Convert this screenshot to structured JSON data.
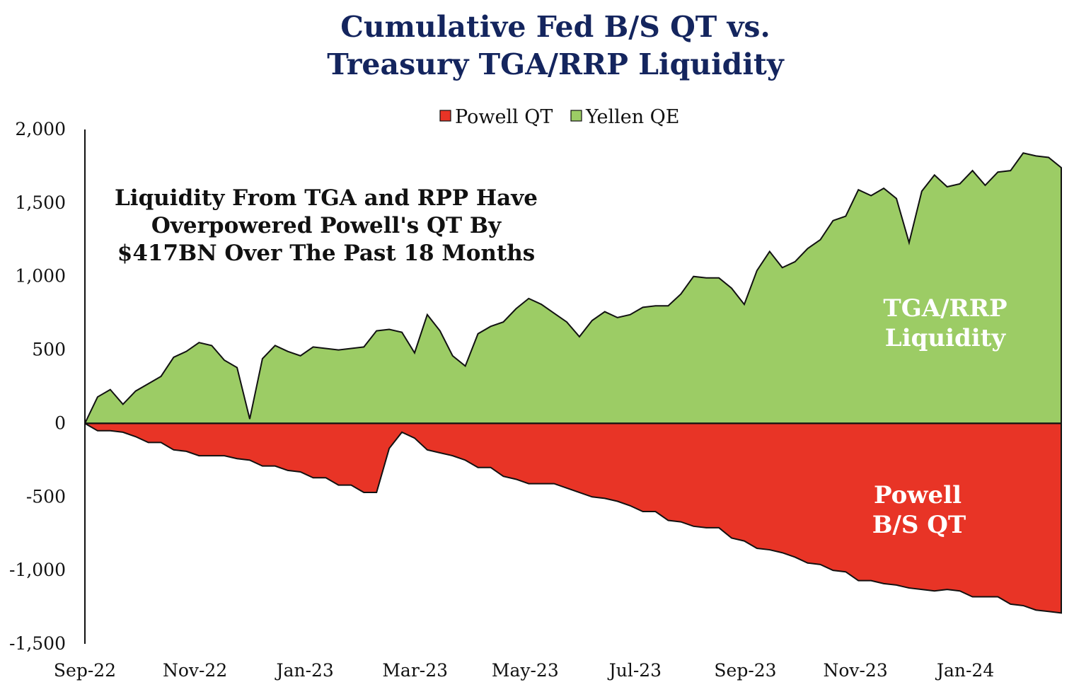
{
  "chart_data": {
    "type": "area",
    "title_lines": [
      "Cumulative Fed B/S QT vs.",
      "Treasury TGA/RRP Liquidity"
    ],
    "legend": [
      {
        "label": "Powell QT",
        "color": "#e83426"
      },
      {
        "label": "Yellen QE",
        "color": "#9ccc65"
      }
    ],
    "legend_position": "top-center",
    "ylim": [
      -1500,
      2000
    ],
    "yticks": [
      2000,
      1500,
      1000,
      500,
      0,
      -500,
      -1000,
      -1500
    ],
    "ytick_labels": [
      "2,000",
      "1,500",
      "1,000",
      "500",
      "0",
      "-500",
      "-1,000",
      "-1,500"
    ],
    "x_tick_labels": [
      "Sep-22",
      "Nov-22",
      "Jan-23",
      "Mar-23",
      "May-23",
      "Jul-23",
      "Sep-23",
      "Nov-23",
      "Jan-24"
    ],
    "annotation_lines": [
      "Liquidity From TGA and RPP Have",
      "Overpowered Powell's QT By",
      "$417BN Over The Past 18 Months"
    ],
    "area_labels": {
      "tga": [
        "TGA/RRP",
        "Liquidity"
      ],
      "qt": [
        "Powell",
        "B/S QT"
      ]
    },
    "grid": false,
    "series": [
      {
        "name": "Yellen QE",
        "color": "#9ccc65",
        "values": [
          0,
          180,
          230,
          130,
          220,
          270,
          320,
          450,
          490,
          550,
          530,
          430,
          380,
          30,
          440,
          530,
          490,
          460,
          520,
          510,
          500,
          510,
          520,
          630,
          640,
          620,
          480,
          740,
          630,
          460,
          390,
          610,
          660,
          690,
          780,
          850,
          810,
          750,
          690,
          590,
          700,
          760,
          720,
          740,
          790,
          800,
          800,
          880,
          1000,
          990,
          990,
          920,
          810,
          1040,
          1170,
          1060,
          1100,
          1190,
          1250,
          1380,
          1410,
          1590,
          1550,
          1600,
          1530,
          1230,
          1580,
          1690,
          1610,
          1630,
          1720,
          1620,
          1710,
          1720,
          1840,
          1820,
          1810,
          1740
        ]
      },
      {
        "name": "Powell QT",
        "color": "#e83426",
        "values": [
          0,
          -50,
          -50,
          -60,
          -90,
          -130,
          -130,
          -180,
          -190,
          -220,
          -220,
          -220,
          -240,
          -250,
          -290,
          -290,
          -320,
          -330,
          -370,
          -370,
          -420,
          -420,
          -470,
          -470,
          -170,
          -60,
          -100,
          -180,
          -200,
          -220,
          -250,
          -300,
          -300,
          -360,
          -380,
          -410,
          -410,
          -410,
          -440,
          -470,
          -500,
          -510,
          -530,
          -560,
          -600,
          -600,
          -660,
          -670,
          -700,
          -710,
          -710,
          -780,
          -800,
          -850,
          -860,
          -880,
          -910,
          -950,
          -960,
          -1000,
          -1010,
          -1070,
          -1070,
          -1090,
          -1100,
          -1120,
          -1130,
          -1140,
          -1130,
          -1140,
          -1180,
          -1180,
          -1180,
          -1230,
          -1240,
          -1270,
          -1280,
          -1290
        ]
      }
    ]
  }
}
